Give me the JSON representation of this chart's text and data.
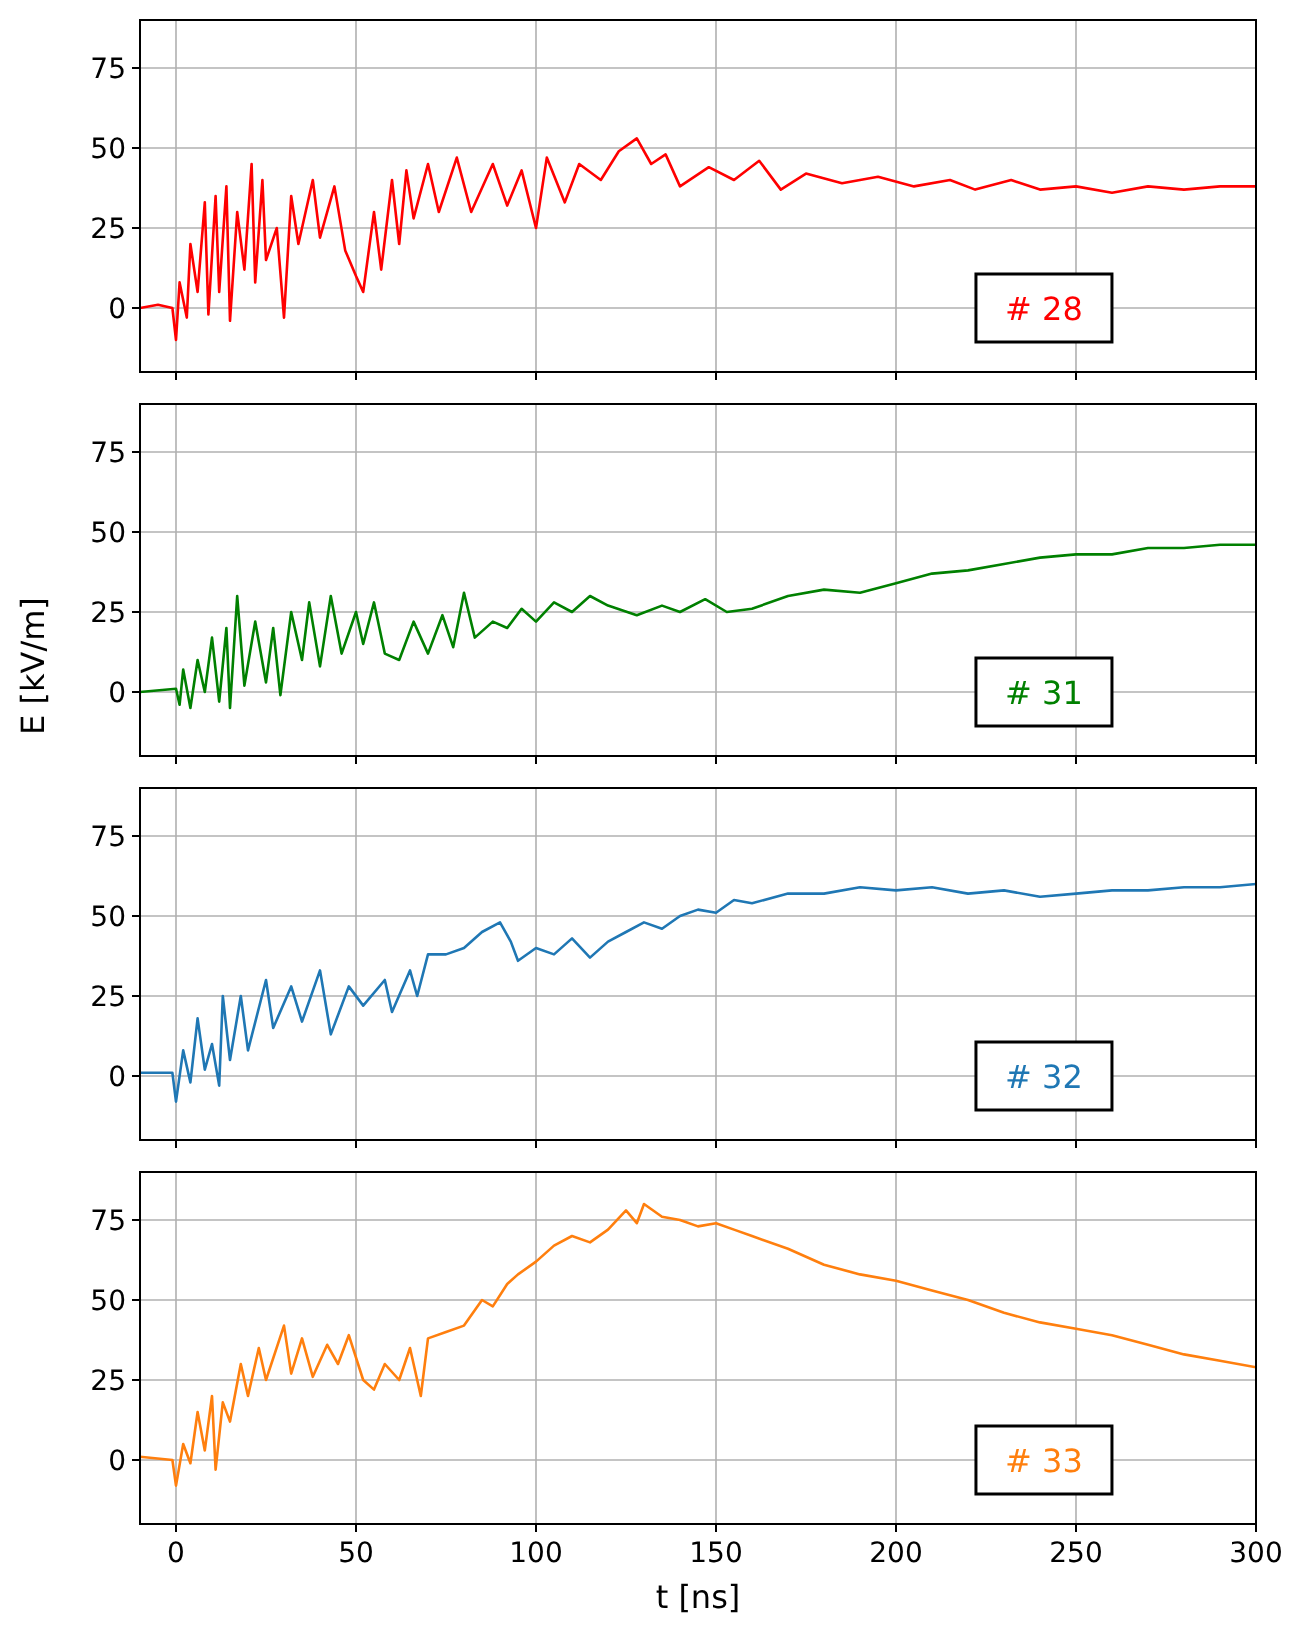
{
  "chart_data": [
    {
      "type": "line",
      "xlim": [
        -10,
        300
      ],
      "xticks": [
        0,
        50,
        100,
        150,
        200,
        250,
        300
      ],
      "ylim": [
        -20,
        90
      ],
      "yticks": [
        0,
        25,
        50,
        75
      ],
      "grid": true,
      "tick_labels": "y",
      "annotations": [
        "# 28"
      ],
      "series": [
        {
          "color": "#ff0000",
          "x": [
            -10,
            -5,
            -1,
            0,
            1,
            3,
            4,
            6,
            8,
            9,
            11,
            12,
            14,
            15,
            17,
            19,
            21,
            22,
            24,
            25,
            28,
            30,
            32,
            34,
            38,
            40,
            44,
            47,
            50,
            52,
            55,
            57,
            60,
            62,
            64,
            66,
            70,
            73,
            78,
            82,
            88,
            92,
            96,
            100,
            103,
            108,
            112,
            118,
            123,
            128,
            132,
            136,
            140,
            148,
            155,
            162,
            168,
            175,
            185,
            195,
            205,
            215,
            222,
            232,
            240,
            250,
            260,
            270,
            280,
            290,
            300
          ],
          "values": [
            0,
            1,
            0,
            -10,
            8,
            -3,
            20,
            5,
            33,
            -2,
            35,
            5,
            38,
            -4,
            30,
            12,
            45,
            8,
            40,
            15,
            25,
            -3,
            35,
            20,
            40,
            22,
            38,
            18,
            10,
            5,
            30,
            12,
            40,
            20,
            43,
            28,
            45,
            30,
            47,
            30,
            45,
            32,
            43,
            25,
            47,
            33,
            45,
            40,
            49,
            53,
            45,
            48,
            38,
            44,
            40,
            46,
            37,
            42,
            39,
            41,
            38,
            40,
            37,
            40,
            37,
            38,
            36,
            38,
            37,
            38,
            38
          ]
        }
      ]
    },
    {
      "type": "line",
      "ylabel": "E [kV/m]",
      "xlim": [
        -10,
        300
      ],
      "xticks": [
        0,
        50,
        100,
        150,
        200,
        250,
        300
      ],
      "ylim": [
        -20,
        90
      ],
      "yticks": [
        0,
        25,
        50,
        75
      ],
      "grid": true,
      "tick_labels": "y",
      "annotations": [
        "# 31"
      ],
      "series": [
        {
          "color": "#008000",
          "x": [
            -10,
            0,
            1,
            2,
            4,
            6,
            8,
            10,
            12,
            14,
            15,
            17,
            19,
            22,
            25,
            27,
            29,
            32,
            35,
            37,
            40,
            43,
            46,
            50,
            52,
            55,
            58,
            62,
            66,
            70,
            74,
            77,
            80,
            83,
            88,
            92,
            96,
            100,
            105,
            110,
            115,
            120,
            128,
            135,
            140,
            147,
            153,
            160,
            170,
            180,
            190,
            200,
            210,
            220,
            230,
            240,
            250,
            260,
            270,
            280,
            290,
            300
          ],
          "values": [
            0,
            1,
            -4,
            7,
            -5,
            10,
            0,
            17,
            -3,
            20,
            -5,
            30,
            2,
            22,
            3,
            20,
            -1,
            25,
            10,
            28,
            8,
            30,
            12,
            25,
            15,
            28,
            12,
            10,
            22,
            12,
            24,
            14,
            31,
            17,
            22,
            20,
            26,
            22,
            28,
            25,
            30,
            27,
            24,
            27,
            25,
            29,
            25,
            26,
            30,
            32,
            31,
            34,
            37,
            38,
            40,
            42,
            43,
            43,
            45,
            45,
            46,
            46
          ]
        }
      ]
    },
    {
      "type": "line",
      "xlim": [
        -10,
        300
      ],
      "xticks": [
        0,
        50,
        100,
        150,
        200,
        250,
        300
      ],
      "ylim": [
        -20,
        90
      ],
      "yticks": [
        0,
        25,
        50,
        75
      ],
      "grid": true,
      "tick_labels": "y",
      "annotations": [
        "# 32"
      ],
      "series": [
        {
          "color": "#1f77b4",
          "x": [
            -10,
            -1,
            0,
            2,
            4,
            6,
            8,
            10,
            12,
            13,
            15,
            18,
            20,
            25,
            27,
            32,
            35,
            40,
            43,
            48,
            52,
            58,
            60,
            65,
            67,
            70,
            75,
            80,
            85,
            90,
            93,
            95,
            100,
            105,
            110,
            115,
            120,
            125,
            130,
            135,
            140,
            145,
            150,
            155,
            160,
            170,
            180,
            190,
            200,
            210,
            220,
            230,
            240,
            250,
            260,
            270,
            280,
            290,
            300
          ],
          "values": [
            1,
            1,
            -8,
            8,
            -2,
            18,
            2,
            10,
            -3,
            25,
            5,
            25,
            8,
            30,
            15,
            28,
            17,
            33,
            13,
            28,
            22,
            30,
            20,
            33,
            25,
            38,
            38,
            40,
            45,
            48,
            42,
            36,
            40,
            38,
            43,
            37,
            42,
            45,
            48,
            46,
            50,
            52,
            51,
            55,
            54,
            57,
            57,
            59,
            58,
            59,
            57,
            58,
            56,
            57,
            58,
            58,
            59,
            59,
            60
          ]
        }
      ]
    },
    {
      "type": "line",
      "xlabel": "t [ns]",
      "xlim": [
        -10,
        300
      ],
      "xticks": [
        0,
        50,
        100,
        150,
        200,
        250,
        300
      ],
      "ylim": [
        -20,
        90
      ],
      "yticks": [
        0,
        25,
        50,
        75
      ],
      "grid": true,
      "annotations": [
        "# 33"
      ],
      "series": [
        {
          "color": "#ff7f0e",
          "x": [
            -10,
            -1,
            0,
            2,
            4,
            6,
            8,
            10,
            11,
            13,
            15,
            18,
            20,
            23,
            25,
            30,
            32,
            35,
            38,
            42,
            45,
            48,
            52,
            55,
            58,
            62,
            65,
            68,
            70,
            75,
            80,
            85,
            88,
            92,
            95,
            100,
            105,
            110,
            115,
            120,
            125,
            128,
            130,
            135,
            140,
            145,
            150,
            155,
            160,
            170,
            180,
            190,
            200,
            210,
            220,
            230,
            240,
            250,
            260,
            270,
            280,
            290,
            300
          ],
          "values": [
            1,
            0,
            -8,
            5,
            -1,
            15,
            3,
            20,
            -3,
            18,
            12,
            30,
            20,
            35,
            25,
            42,
            27,
            38,
            26,
            36,
            30,
            39,
            25,
            22,
            30,
            25,
            35,
            20,
            38,
            40,
            42,
            50,
            48,
            55,
            58,
            62,
            67,
            70,
            68,
            72,
            78,
            74,
            80,
            76,
            75,
            73,
            74,
            72,
            70,
            66,
            61,
            58,
            56,
            53,
            50,
            46,
            43,
            41,
            39,
            36,
            33,
            31,
            29
          ]
        }
      ]
    }
  ]
}
